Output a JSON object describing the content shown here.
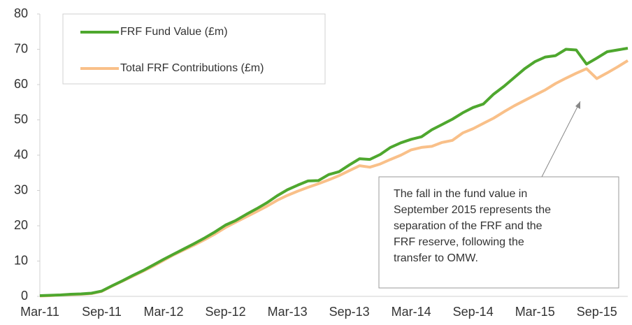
{
  "chart_data": {
    "type": "line",
    "categories": [
      "Mar-11",
      null,
      null,
      null,
      null,
      null,
      "Sep-11",
      null,
      null,
      null,
      null,
      null,
      "Mar-12",
      null,
      null,
      null,
      null,
      null,
      "Sep-12",
      null,
      null,
      null,
      null,
      null,
      "Mar-13",
      null,
      null,
      null,
      null,
      null,
      "Sep-13",
      null,
      null,
      null,
      null,
      null,
      "Mar-14",
      null,
      null,
      null,
      null,
      null,
      "Sep-14",
      null,
      null,
      null,
      null,
      null,
      "Mar-15",
      null,
      null,
      null,
      null,
      null,
      "Sep-15",
      null,
      null,
      null
    ],
    "series": [
      {
        "name": "FRF Fund Value (£m)",
        "color": "#4ea72e",
        "values": [
          0.2,
          0.3,
          0.4,
          0.6,
          0.7,
          0.9,
          1.5,
          3.0,
          4.4,
          5.9,
          7.3,
          8.9,
          10.5,
          12.0,
          13.5,
          15.0,
          16.6,
          18.3,
          20.2,
          21.5,
          23.2,
          24.8,
          26.5,
          28.5,
          30.2,
          31.5,
          32.7,
          32.8,
          34.5,
          35.3,
          37.2,
          39.0,
          38.8,
          40.2,
          42.2,
          43.5,
          44.5,
          45.2,
          47.2,
          48.7,
          50.2,
          52.0,
          53.5,
          54.5,
          57.3,
          59.5,
          62.0,
          64.5,
          66.5,
          67.8,
          68.2,
          70.0,
          69.8,
          65.8,
          67.5,
          69.3,
          69.8,
          70.3
        ]
      },
      {
        "name": "Total FRF Contributions (£m)",
        "color": "#f9c089",
        "values": [
          0.1,
          0.2,
          0.4,
          0.5,
          0.6,
          0.8,
          1.4,
          2.9,
          4.3,
          5.7,
          7.1,
          8.6,
          10.2,
          11.8,
          13.2,
          14.6,
          16.1,
          17.7,
          19.5,
          21.0,
          22.5,
          24.0,
          25.5,
          27.2,
          28.6,
          29.8,
          30.9,
          31.9,
          33.0,
          34.2,
          35.6,
          37.0,
          36.6,
          37.5,
          38.8,
          40.0,
          41.5,
          42.2,
          42.5,
          43.6,
          44.2,
          46.3,
          47.5,
          49.0,
          50.5,
          52.3,
          54.0,
          55.5,
          57.0,
          58.5,
          60.3,
          61.8,
          63.2,
          64.5,
          61.7,
          63.3,
          65.0,
          66.8
        ]
      }
    ],
    "ylim": [
      0,
      80
    ],
    "yticks": [
      0,
      10,
      20,
      30,
      40,
      50,
      60,
      70,
      80
    ],
    "grid": false,
    "legend": "upper left",
    "annotation": [
      "The fall in the fund value in",
      "September 2015 represents the",
      "separation of the FRF and the",
      "FRF reserve, following the",
      "transfer to OMW."
    ]
  }
}
